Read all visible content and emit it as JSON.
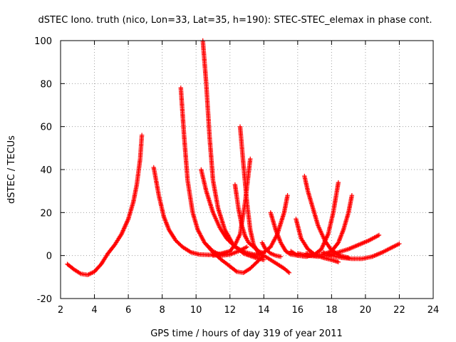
{
  "chart_data": {
    "type": "scatter",
    "title": "dSTEC Iono. truth (nico, Lon=33, Lat=35, h=190): STEC-STEC_elemax in phase cont.",
    "xlabel": "GPS time / hours of day 319 of year 2011",
    "ylabel": "dSTEC  / TECUs",
    "xlim": [
      2,
      24
    ],
    "ylim": [
      -20,
      100
    ],
    "xticks": [
      "2",
      "4",
      "6",
      "8",
      "10",
      "12",
      "14",
      "16",
      "18",
      "20",
      "22",
      "24"
    ],
    "yticks": [
      "-20",
      "0",
      "20",
      "40",
      "60",
      "80",
      "100"
    ],
    "grid": true,
    "marker": "plus",
    "color": "#ff0000",
    "series": [
      {
        "x": [
          2.4,
          2.8,
          3.2,
          3.6,
          4.0,
          4.4,
          4.8,
          5.2,
          5.6,
          6.0,
          6.3,
          6.5,
          6.7,
          6.8
        ],
        "y": [
          -4,
          -6.5,
          -8.5,
          -9,
          -7.5,
          -4,
          1,
          5,
          10,
          17,
          25,
          33,
          45,
          56
        ]
      },
      {
        "x": [
          7.5,
          7.8,
          8.1,
          8.4,
          8.8,
          9.2,
          9.7,
          10.2,
          10.8,
          11.4,
          12.0
        ],
        "y": [
          41,
          28,
          18,
          12,
          7,
          4,
          1.5,
          0.5,
          0.3,
          0.8,
          2
        ]
      },
      {
        "x": [
          9.1,
          9.3,
          9.5,
          9.8,
          10.1,
          10.5,
          11.0,
          11.5,
          12.0,
          12.5,
          13.0
        ],
        "y": [
          78,
          55,
          35,
          20,
          12,
          6,
          2,
          0,
          0.5,
          2,
          4
        ]
      },
      {
        "x": [
          10.4,
          10.6,
          10.8,
          11.0,
          11.3,
          11.7,
          12.2,
          12.8,
          13.5,
          14.0
        ],
        "y": [
          100,
          80,
          55,
          35,
          22,
          12,
          5,
          1,
          -1,
          -2
        ]
      },
      {
        "x": [
          10.3,
          10.6,
          11.0,
          11.4,
          11.8,
          12.3,
          12.9,
          13.4,
          13.9
        ],
        "y": [
          40,
          30,
          20,
          13,
          8,
          4,
          1.5,
          0.5,
          0
        ]
      },
      {
        "x": [
          10.5,
          11.0,
          11.5,
          12.0,
          12.4,
          12.8,
          13.2,
          13.6,
          14.0,
          14.4,
          14.8,
          15.2,
          15.5
        ],
        "y": [
          6,
          1.5,
          -2,
          -5,
          -7.5,
          -8,
          -6,
          -3,
          0,
          -2,
          -4,
          -6,
          -8
        ]
      },
      {
        "x": [
          11.0,
          11.5,
          12.0,
          12.3,
          12.6,
          12.9,
          13.2
        ],
        "y": [
          0,
          0.5,
          2,
          5,
          10,
          25,
          45
        ]
      },
      {
        "x": [
          12.3,
          12.5,
          12.7,
          12.9,
          13.1,
          13.4,
          13.7,
          14.0
        ],
        "y": [
          33,
          22,
          14,
          9,
          6,
          4,
          2,
          1
        ]
      },
      {
        "x": [
          12.6,
          12.8,
          13.0,
          13.2,
          13.4,
          13.7
        ],
        "y": [
          60,
          42,
          25,
          12,
          5,
          1
        ]
      },
      {
        "x": [
          13.0,
          13.3,
          13.7,
          14.0,
          14.4,
          14.8,
          15.2,
          15.4
        ],
        "y": [
          0.5,
          0,
          0.5,
          1.5,
          4,
          10,
          20,
          28
        ]
      },
      {
        "x": [
          14.4,
          14.7,
          15.0,
          15.3,
          15.6,
          16.0
        ],
        "y": [
          20,
          12,
          6,
          2,
          0.5,
          0
        ]
      },
      {
        "x": [
          13.9,
          14.1,
          14.4,
          14.7,
          15.0
        ],
        "y": [
          6,
          3,
          1,
          0,
          -0.5
        ]
      },
      {
        "x": [
          15.9,
          16.2,
          16.6,
          17.0,
          17.5,
          18.0,
          18.4
        ],
        "y": [
          17,
          8,
          3,
          0.5,
          -1,
          -2,
          -3
        ]
      },
      {
        "x": [
          16.4,
          16.6,
          16.9,
          17.2,
          17.6,
          18.0,
          18.5,
          19.0
        ],
        "y": [
          37,
          30,
          22,
          14,
          7,
          2.5,
          0,
          -1
        ]
      },
      {
        "x": [
          15.6,
          16.0,
          16.5,
          17.0,
          17.4,
          17.8,
          18.1,
          18.4
        ],
        "y": [
          2,
          0,
          -0.5,
          0.5,
          3,
          10,
          20,
          34
        ]
      },
      {
        "x": [
          16.5,
          17.0,
          17.5,
          18.0,
          18.4,
          18.7,
          19.0,
          19.2
        ],
        "y": [
          1,
          0,
          0.5,
          2,
          6,
          12,
          20,
          28
        ]
      },
      {
        "x": [
          16.0,
          16.6,
          17.2,
          17.8,
          18.4,
          19.0,
          19.6,
          20.2,
          20.8
        ],
        "y": [
          1,
          0,
          -0.5,
          0,
          1.5,
          3,
          5,
          7,
          9.5
        ]
      },
      {
        "x": [
          17.5,
          18.0,
          18.6,
          19.2,
          19.8,
          20.4,
          21.0,
          21.5,
          22.0
        ],
        "y": [
          1.5,
          0,
          -1,
          -1.5,
          -1.5,
          -0.5,
          1.5,
          3.5,
          5.5
        ]
      }
    ]
  }
}
